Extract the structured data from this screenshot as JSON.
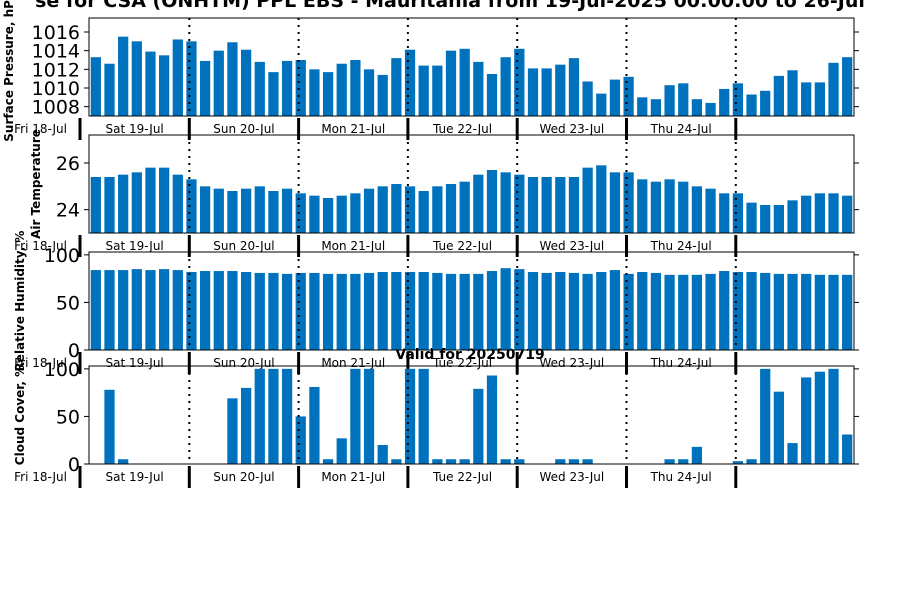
{
  "title": "se for CSA (ONHTM) PPL EBS  - Mauritania from 19-Jul-2025 00:00:00 to 26-Jul",
  "valid_label": "Valid for 20250719",
  "day_labels": [
    "Fri 18-Jul",
    "Sat 19-Jul",
    "Sun 20-Jul",
    "Mon 21-Jul",
    "Tue 22-Jul",
    "Wed 23-Jul",
    "Thu 24-Jul"
  ],
  "colors": {
    "bar": "#0072bd",
    "axis": "#000000"
  },
  "chart_data": [
    {
      "type": "bar",
      "ylabel": "Surface Pressure, hPa",
      "ylim": [
        1007,
        1017.5
      ],
      "yticks": [
        1008,
        1010,
        1012,
        1014,
        1016
      ],
      "values": [
        1013.3,
        1012.6,
        1015.5,
        1015.0,
        1013.9,
        1013.5,
        1015.2,
        1015.0,
        1012.9,
        1014.0,
        1014.9,
        1014.1,
        1012.8,
        1011.7,
        1012.9,
        1013.0,
        1012.0,
        1011.7,
        1012.6,
        1013.0,
        1012.0,
        1011.4,
        1013.2,
        1014.1,
        1012.4,
        1012.4,
        1014.0,
        1014.2,
        1012.8,
        1011.5,
        1013.3,
        1014.2,
        1012.1,
        1012.1,
        1012.5,
        1013.2,
        1010.7,
        1009.4,
        1010.9,
        1011.2,
        1009.0,
        1008.8,
        1010.3,
        1010.5,
        1008.8,
        1008.4,
        1009.9,
        1010.5,
        1009.3,
        1009.7,
        1011.3,
        1011.9,
        1010.6,
        1010.6,
        1012.7,
        1013.3
      ]
    },
    {
      "type": "bar",
      "ylabel": "Air Temperature",
      "ylim": [
        23.0,
        27.2
      ],
      "yticks": [
        24,
        26
      ],
      "values": [
        25.4,
        25.4,
        25.5,
        25.6,
        25.8,
        25.8,
        25.5,
        25.3,
        25.0,
        24.9,
        24.8,
        24.9,
        25.0,
        24.8,
        24.9,
        24.7,
        24.6,
        24.5,
        24.6,
        24.7,
        24.9,
        25.0,
        25.1,
        25.0,
        24.8,
        25.0,
        25.1,
        25.2,
        25.5,
        25.7,
        25.6,
        25.5,
        25.4,
        25.4,
        25.4,
        25.4,
        25.8,
        25.9,
        25.6,
        25.6,
        25.3,
        25.2,
        25.3,
        25.2,
        25.0,
        24.9,
        24.7,
        24.7,
        24.3,
        24.2,
        24.2,
        24.4,
        24.6,
        24.7,
        24.7,
        24.6
      ]
    },
    {
      "type": "bar",
      "ylabel": "Relative Humidity, %",
      "ylim": [
        0,
        103
      ],
      "yticks": [
        0,
        50,
        100
      ],
      "values": [
        84,
        84,
        84,
        85,
        84,
        85,
        84,
        82,
        83,
        83,
        83,
        82,
        81,
        81,
        80,
        81,
        81,
        80,
        80,
        80,
        81,
        82,
        82,
        82,
        82,
        81,
        80,
        80,
        80,
        83,
        86,
        85,
        82,
        81,
        82,
        81,
        80,
        82,
        84,
        80,
        82,
        81,
        79,
        79,
        79,
        80,
        83,
        82,
        82,
        81,
        80,
        80,
        80,
        79,
        79,
        79
      ]
    },
    {
      "type": "bar",
      "ylabel": "Cloud Cover, %",
      "ylim": [
        0,
        103
      ],
      "yticks": [
        0,
        50,
        100
      ],
      "values": [
        0,
        78,
        5,
        0,
        0,
        0,
        0,
        0,
        0,
        0,
        69,
        80,
        100,
        100,
        100,
        50,
        81,
        5,
        27,
        100,
        100,
        20,
        5,
        100,
        100,
        5,
        5,
        5,
        79,
        93,
        5,
        5,
        0,
        0,
        5,
        5,
        5,
        0,
        0,
        0,
        0,
        0,
        5,
        5,
        18,
        0,
        0,
        3,
        5,
        100,
        76,
        22,
        91,
        97,
        100,
        31
      ]
    }
  ]
}
